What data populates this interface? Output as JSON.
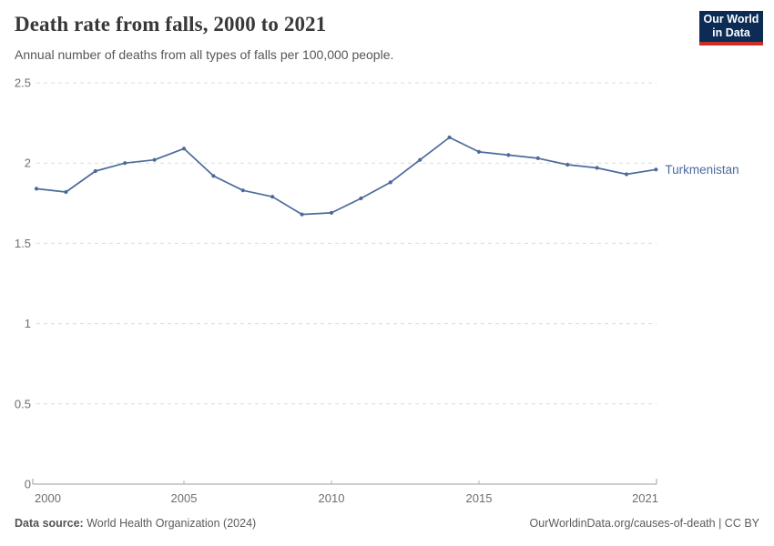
{
  "header": {
    "title": "Death rate from falls, 2000 to 2021",
    "subtitle": "Annual number of deaths from all types of falls per 100,000 people."
  },
  "logo": {
    "line1": "Our World",
    "line2": "in Data",
    "bg_color": "#0c2c55",
    "accent_color": "#cd2d28"
  },
  "chart_data": {
    "type": "line",
    "title": "Death rate from falls, 2000 to 2021",
    "xlabel": "",
    "ylabel": "",
    "x": [
      2000,
      2001,
      2002,
      2003,
      2004,
      2005,
      2006,
      2007,
      2008,
      2009,
      2010,
      2011,
      2012,
      2013,
      2014,
      2015,
      2016,
      2017,
      2018,
      2019,
      2020,
      2021
    ],
    "series": [
      {
        "name": "Turkmenistan",
        "color": "#4c6a9c",
        "values": [
          1.84,
          1.82,
          1.95,
          2.0,
          2.02,
          2.09,
          1.92,
          1.83,
          1.79,
          1.68,
          1.69,
          1.78,
          1.88,
          2.02,
          2.16,
          2.07,
          2.05,
          2.03,
          1.99,
          1.97,
          1.93,
          1.96
        ]
      }
    ],
    "ylim": [
      0,
      2.5
    ],
    "yticks": [
      0,
      0.5,
      1,
      1.5,
      2,
      2.5
    ],
    "xticks": [
      2000,
      2005,
      2010,
      2015,
      2021
    ],
    "grid": "horizontal-dashed",
    "legend_position": "end-of-line-label",
    "colors": {
      "gridline": "#dcdcdc",
      "axis_line": "#9e9e9e",
      "tick_text": "#6e6e6e"
    }
  },
  "footer": {
    "datasource_label": "Data source:",
    "datasource": "World Health Organization (2024)",
    "url_text": "OurWorldinData.org/causes-of-death",
    "license_text": " | CC BY"
  }
}
